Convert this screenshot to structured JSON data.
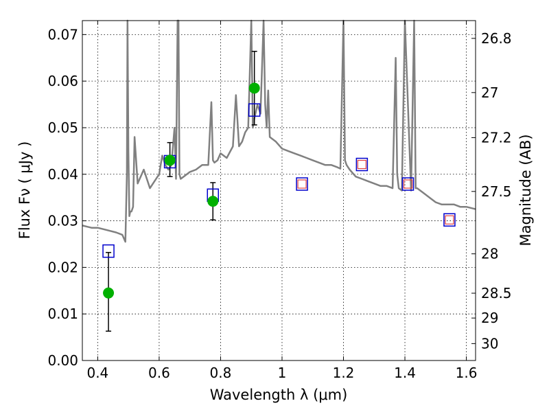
{
  "chart_data": {
    "type": "line",
    "xlabel": "Wavelength  λ (μm)",
    "ylabel": "Flux  Fν  ( μJy )",
    "y2label": "Magnitude (AB)",
    "xlim": [
      0.35,
      1.63
    ],
    "ylim": [
      0.0,
      0.073
    ],
    "x_ticks": [
      0.4,
      0.6,
      0.8,
      1.0,
      1.2,
      1.4,
      1.6
    ],
    "x_tick_labels": [
      "0.4",
      "0.6",
      "0.8",
      "1",
      "1.2",
      "1.4",
      "1.6"
    ],
    "y_ticks": [
      0.0,
      0.01,
      0.02,
      0.03,
      0.04,
      0.05,
      0.06,
      0.07
    ],
    "y_tick_labels": [
      "0.00",
      "0.01",
      "0.02",
      "0.03",
      "0.04",
      "0.05",
      "0.06",
      "0.07"
    ],
    "mag_ticks": [
      26.8,
      27,
      27.2,
      27.5,
      28,
      28.5,
      29,
      30
    ],
    "mag_tick_labels": [
      "26.8",
      "27",
      "27.2",
      "27.5",
      "28",
      "28.5",
      "29",
      "30"
    ],
    "grid": true,
    "colors": {
      "spectrum": "#808080",
      "observed": "#00b000",
      "model_box": "#0000cc",
      "upper_box": "#e04040",
      "errorbar": "#000000"
    },
    "spectrum": {
      "x": [
        0.35,
        0.38,
        0.4,
        0.43,
        0.46,
        0.48,
        0.49,
        0.495,
        0.497,
        0.5,
        0.503,
        0.506,
        0.51,
        0.515,
        0.52,
        0.53,
        0.55,
        0.57,
        0.59,
        0.6,
        0.61,
        0.62,
        0.63,
        0.64,
        0.65,
        0.655,
        0.66,
        0.663,
        0.666,
        0.67,
        0.68,
        0.7,
        0.72,
        0.74,
        0.76,
        0.77,
        0.775,
        0.78,
        0.79,
        0.8,
        0.82,
        0.84,
        0.85,
        0.86,
        0.87,
        0.88,
        0.89,
        0.9,
        0.905,
        0.91,
        0.92,
        0.93,
        0.94,
        0.945,
        0.95,
        0.955,
        0.96,
        0.98,
        1.0,
        1.02,
        1.04,
        1.06,
        1.08,
        1.1,
        1.12,
        1.14,
        1.16,
        1.18,
        1.19,
        1.2,
        1.205,
        1.21,
        1.22,
        1.24,
        1.26,
        1.28,
        1.3,
        1.32,
        1.34,
        1.36,
        1.37,
        1.375,
        1.38,
        1.39,
        1.4,
        1.42,
        1.43,
        1.435,
        1.44,
        1.46,
        1.48,
        1.5,
        1.52,
        1.54,
        1.56,
        1.58,
        1.6,
        1.63
      ],
      "y": [
        0.029,
        0.0285,
        0.0285,
        0.028,
        0.0275,
        0.027,
        0.0255,
        0.04,
        0.073,
        0.045,
        0.031,
        0.032,
        0.032,
        0.033,
        0.048,
        0.038,
        0.041,
        0.037,
        0.039,
        0.04,
        0.044,
        0.042,
        0.041,
        0.042,
        0.05,
        0.039,
        0.073,
        0.073,
        0.04,
        0.039,
        0.0395,
        0.0405,
        0.041,
        0.042,
        0.042,
        0.0555,
        0.043,
        0.0425,
        0.043,
        0.0445,
        0.0435,
        0.046,
        0.057,
        0.046,
        0.047,
        0.049,
        0.05,
        0.073,
        0.05,
        0.052,
        0.055,
        0.053,
        0.073,
        0.055,
        0.05,
        0.058,
        0.048,
        0.047,
        0.0455,
        0.045,
        0.0445,
        0.044,
        0.0435,
        0.043,
        0.0425,
        0.042,
        0.042,
        0.0415,
        0.0412,
        0.073,
        0.043,
        0.042,
        0.041,
        0.0395,
        0.039,
        0.0385,
        0.038,
        0.0375,
        0.0375,
        0.037,
        0.065,
        0.04,
        0.037,
        0.0365,
        0.073,
        0.0365,
        0.073,
        0.037,
        0.037,
        0.036,
        0.035,
        0.034,
        0.0335,
        0.0335,
        0.0335,
        0.033,
        0.033,
        0.0325
      ]
    },
    "observed": {
      "x": [
        0.435,
        0.635,
        0.775,
        0.91
      ],
      "y": [
        0.0145,
        0.043,
        0.0342,
        0.0585
      ],
      "yerr_low": [
        0.0063,
        0.0395,
        0.0302,
        0.0506
      ],
      "yerr_high": [
        0.0232,
        0.0468,
        0.0382,
        0.0664
      ]
    },
    "model_points": {
      "x": [
        0.435,
        0.635,
        0.775,
        0.91,
        1.065,
        1.26,
        1.41,
        1.545
      ],
      "y": [
        0.0235,
        0.0427,
        0.0355,
        0.0538,
        0.0379,
        0.0421,
        0.0379,
        0.0302
      ]
    },
    "upper_limit_points": {
      "x": [
        1.065,
        1.26,
        1.41,
        1.545
      ],
      "y": [
        0.0379,
        0.0421,
        0.0379,
        0.0302
      ]
    }
  }
}
